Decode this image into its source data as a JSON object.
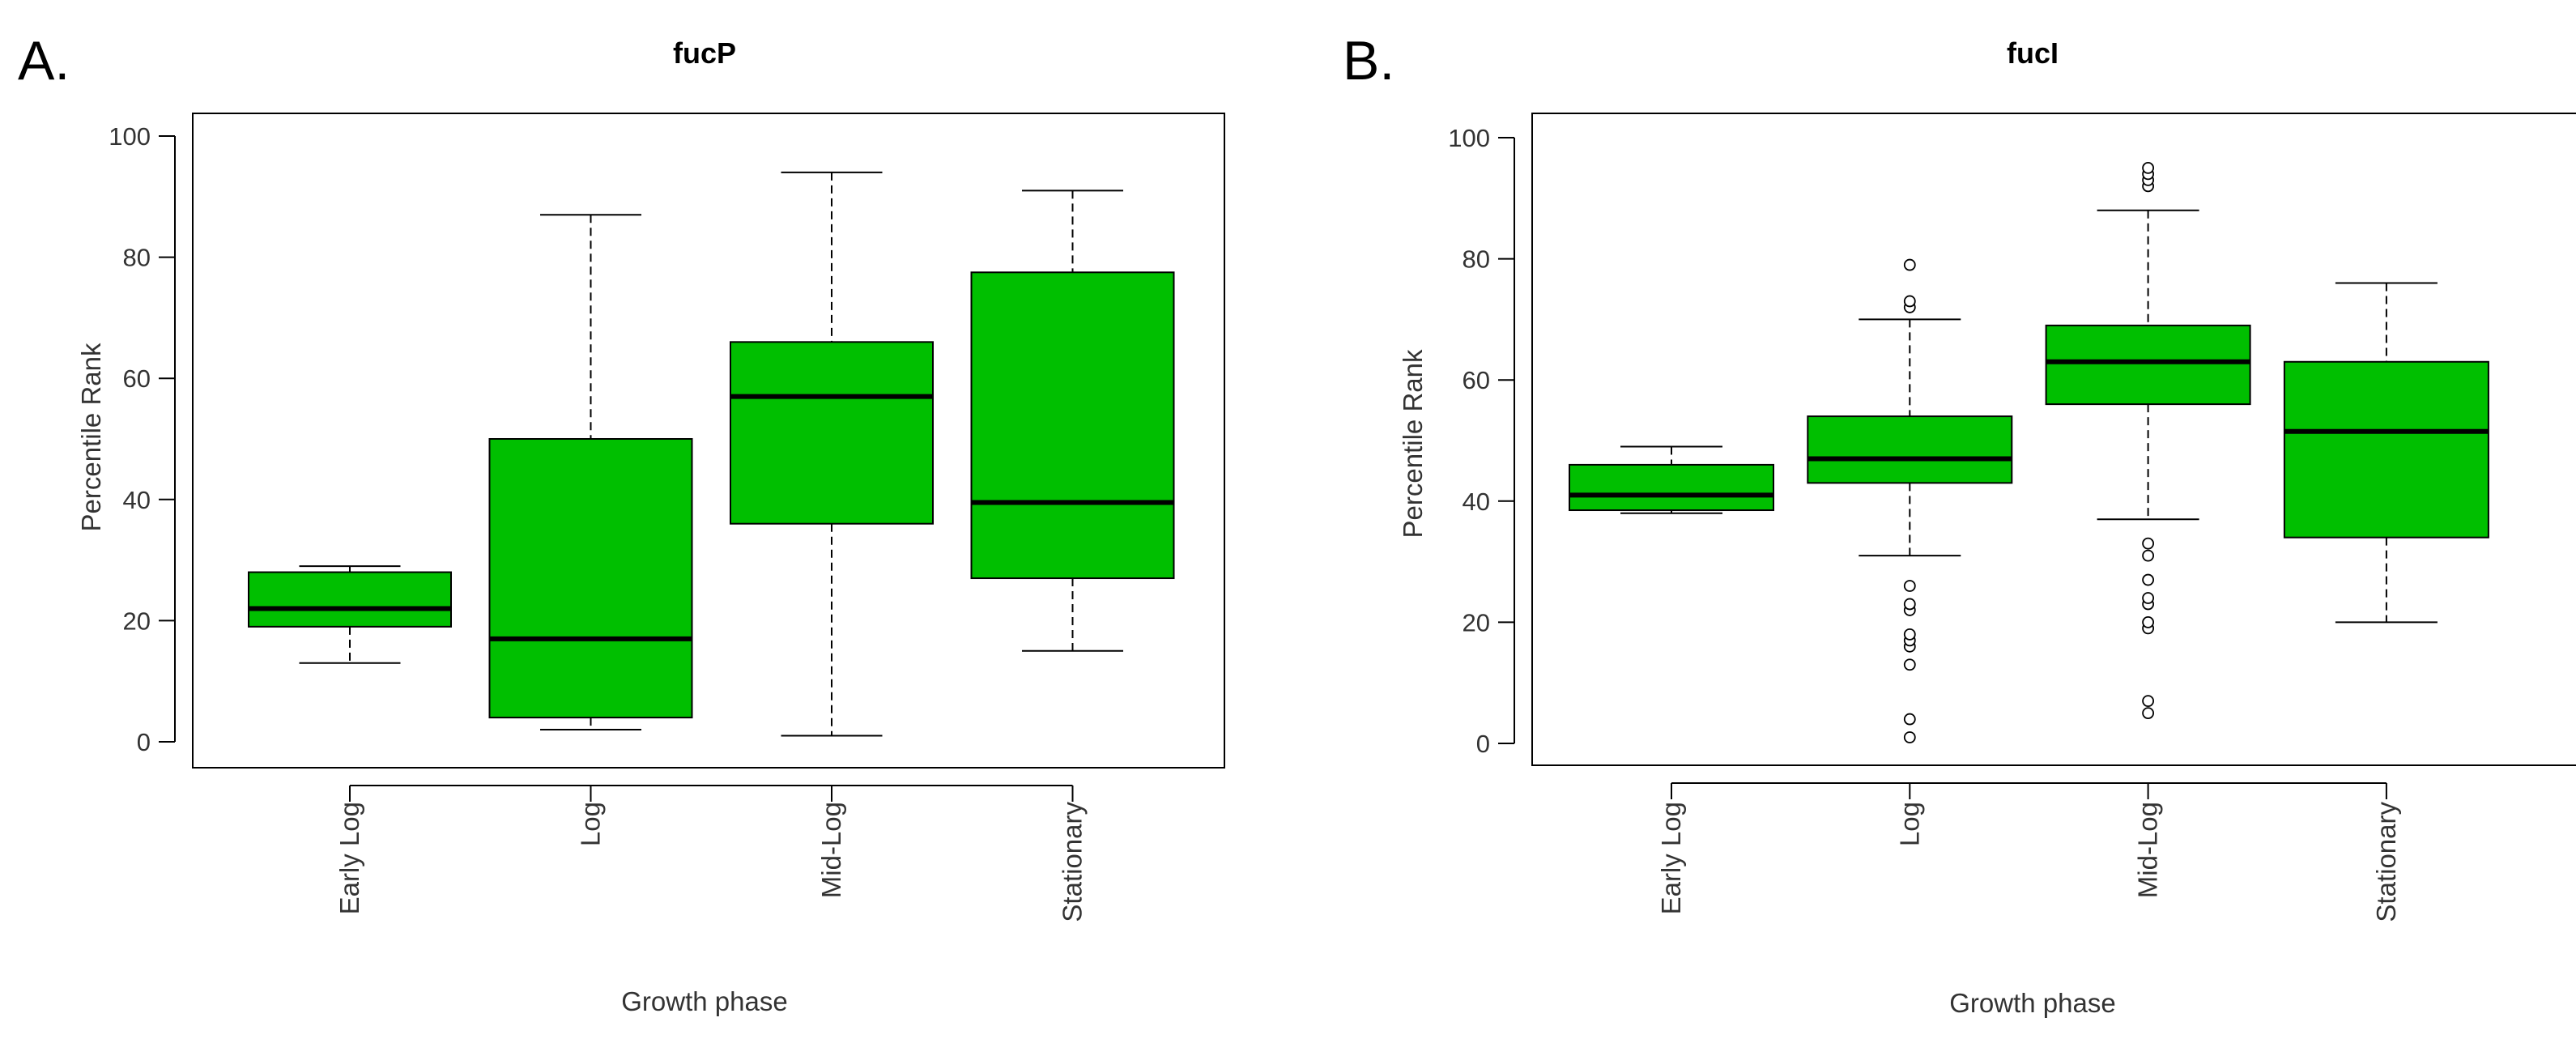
{
  "panels": [
    {
      "letter": "A."
    },
    {
      "letter": "B."
    }
  ],
  "chart_data": [
    {
      "type": "boxplot",
      "title": "fucP",
      "xlabel": "Growth phase",
      "ylabel": "Percentile Rank",
      "ylim": [
        0,
        100
      ],
      "yticks": [
        0,
        20,
        40,
        60,
        80,
        100
      ],
      "categories": [
        "Early Log",
        "Log",
        "Mid-Log",
        "Stationary"
      ],
      "box_color": "#00bf00",
      "boxes": [
        {
          "category": "Early Log",
          "whisker_low": 13,
          "q1": 19,
          "median": 22,
          "q3": 28,
          "whisker_high": 29,
          "outliers": []
        },
        {
          "category": "Log",
          "whisker_low": 2,
          "q1": 4,
          "median": 17,
          "q3": 50,
          "whisker_high": 87,
          "outliers": []
        },
        {
          "category": "Mid-Log",
          "whisker_low": 1,
          "q1": 36,
          "median": 57,
          "q3": 66,
          "whisker_high": 94,
          "outliers": []
        },
        {
          "category": "Stationary",
          "whisker_low": 15,
          "q1": 27,
          "median": 39.5,
          "q3": 77.5,
          "whisker_high": 91,
          "outliers": []
        }
      ]
    },
    {
      "type": "boxplot",
      "title": "fucI",
      "xlabel": "Growth phase",
      "ylabel": "Percentile Rank",
      "ylim": [
        0,
        100
      ],
      "yticks": [
        0,
        20,
        40,
        60,
        80,
        100
      ],
      "categories": [
        "Early Log",
        "Log",
        "Mid-Log",
        "Stationary"
      ],
      "box_color": "#00bf00",
      "boxes": [
        {
          "category": "Early Log",
          "whisker_low": 38,
          "q1": 38.5,
          "median": 41,
          "q3": 46,
          "whisker_high": 49,
          "outliers": []
        },
        {
          "category": "Log",
          "whisker_low": 31,
          "q1": 43,
          "median": 47,
          "q3": 54,
          "whisker_high": 70,
          "outliers": [
            1,
            4,
            13,
            16,
            17,
            18,
            22,
            23,
            26,
            72,
            73,
            79
          ]
        },
        {
          "category": "Mid-Log",
          "whisker_low": 37,
          "q1": 56,
          "median": 63,
          "q3": 69,
          "whisker_high": 88,
          "outliers": [
            5,
            7,
            19,
            20,
            23,
            24,
            27,
            31,
            33,
            92,
            93,
            94,
            95
          ]
        },
        {
          "category": "Stationary",
          "whisker_low": 20,
          "q1": 34,
          "median": 51.5,
          "q3": 63,
          "whisker_high": 76,
          "outliers": []
        }
      ]
    }
  ]
}
